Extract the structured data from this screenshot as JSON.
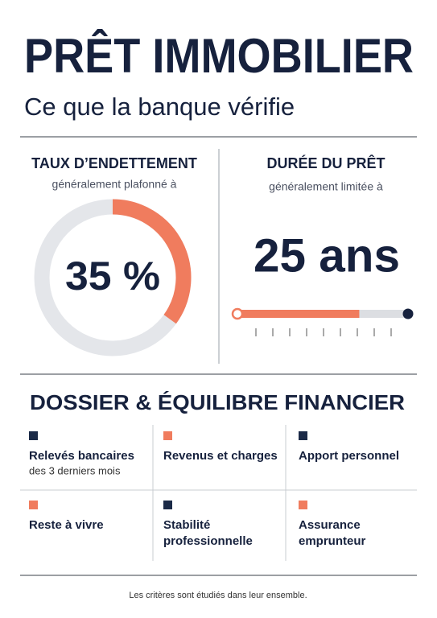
{
  "header": {
    "title": "PRÊT IMMOBILIER",
    "subtitle": "Ce que la banque vérifie"
  },
  "debt_ratio": {
    "title": "TAUX D’ENDETTEMENT",
    "subtitle": "généralement plafonné à",
    "value": 35,
    "label": "35 %",
    "color": "#f07c5e",
    "track_color": "#e4e6ea"
  },
  "loan_duration": {
    "title": "DURÉE DU PRÊT",
    "subtitle": "généralement limitée à",
    "value": 25,
    "label": "25 ans",
    "lim": [
      0,
      35
    ],
    "color": "#f07c5e",
    "track_color": "#dcdee2"
  },
  "section": {
    "title": "DOSSIER & ÉQUILIBRE FINANCIER"
  },
  "items": [
    {
      "lines": [
        "Relevés bancaires"
      ],
      "detail": "des 3 derniers mois",
      "marker": "#1b2a47"
    },
    {
      "lines": [
        "Revenus et charges"
      ],
      "marker": "#f07c5e"
    },
    {
      "lines": [
        "Apport personnel"
      ],
      "marker": "#1b2a47"
    },
    {
      "lines": [
        "Reste à vivre"
      ],
      "marker": "#f07c5e"
    },
    {
      "lines": [
        "Stabilité",
        "professionnelle"
      ],
      "marker": "#1b2a47"
    },
    {
      "lines": [
        "Assurance",
        "emprunteur"
      ],
      "marker": "#f07c5e"
    }
  ],
  "footer": "Les critères sont étudiés dans leur ensemble."
}
